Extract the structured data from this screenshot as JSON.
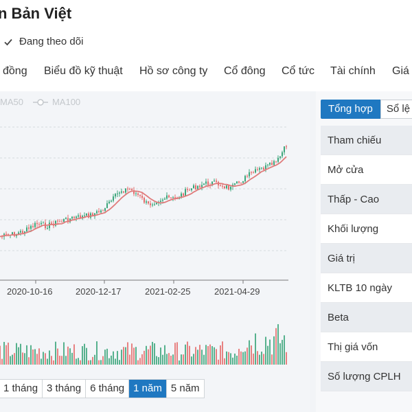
{
  "header": {
    "company_name": "n Bản Việt",
    "follow_label": "Đang theo dõi"
  },
  "tabs": [
    "đồng",
    "Biểu đồ kỹ thuật",
    "Hồ sơ công ty",
    "Cổ đông",
    "Cổ tức",
    "Tài chính",
    "Giá"
  ],
  "legend": {
    "ma50": "MA50",
    "ma100": "MA100"
  },
  "chart_data": {
    "type": "line",
    "x_ticks": [
      "2020-10-16",
      "2020-12-17",
      "2021-02-25",
      "2021-04-29"
    ],
    "series": [
      {
        "name": "MA50",
        "values": []
      },
      {
        "name": "MA100",
        "values": []
      }
    ],
    "candles_relative_trend": [
      0.08,
      0.09,
      0.11,
      0.14,
      0.19,
      0.17,
      0.2,
      0.22,
      0.24,
      0.25,
      0.27,
      0.3,
      0.38,
      0.47,
      0.49,
      0.43,
      0.35,
      0.39,
      0.41,
      0.4,
      0.46,
      0.5,
      0.53,
      0.54,
      0.52,
      0.49,
      0.55,
      0.61,
      0.65,
      0.68,
      0.72,
      0.86
    ],
    "grid": true
  },
  "range_buttons": [
    "1 tháng",
    "3 tháng",
    "6 tháng",
    "1 năm",
    "5 năm"
  ],
  "range_active": "1 năm",
  "right_panel": {
    "tab_summary": "Tổng hợp",
    "tab_orders": "Sổ lệ",
    "rows": [
      "Tham chiếu",
      "Mở cửa",
      "Thấp - Cao",
      "Khối lượng",
      "Giá trị",
      "KLTB 10 ngày",
      "Beta",
      "Thị giá vốn",
      "Số lượng CPLH"
    ]
  },
  "colors": {
    "accent": "#1f78c1",
    "up": "#3aa57a",
    "down": "#e46c6c",
    "ma_line": "#e07b7b"
  }
}
